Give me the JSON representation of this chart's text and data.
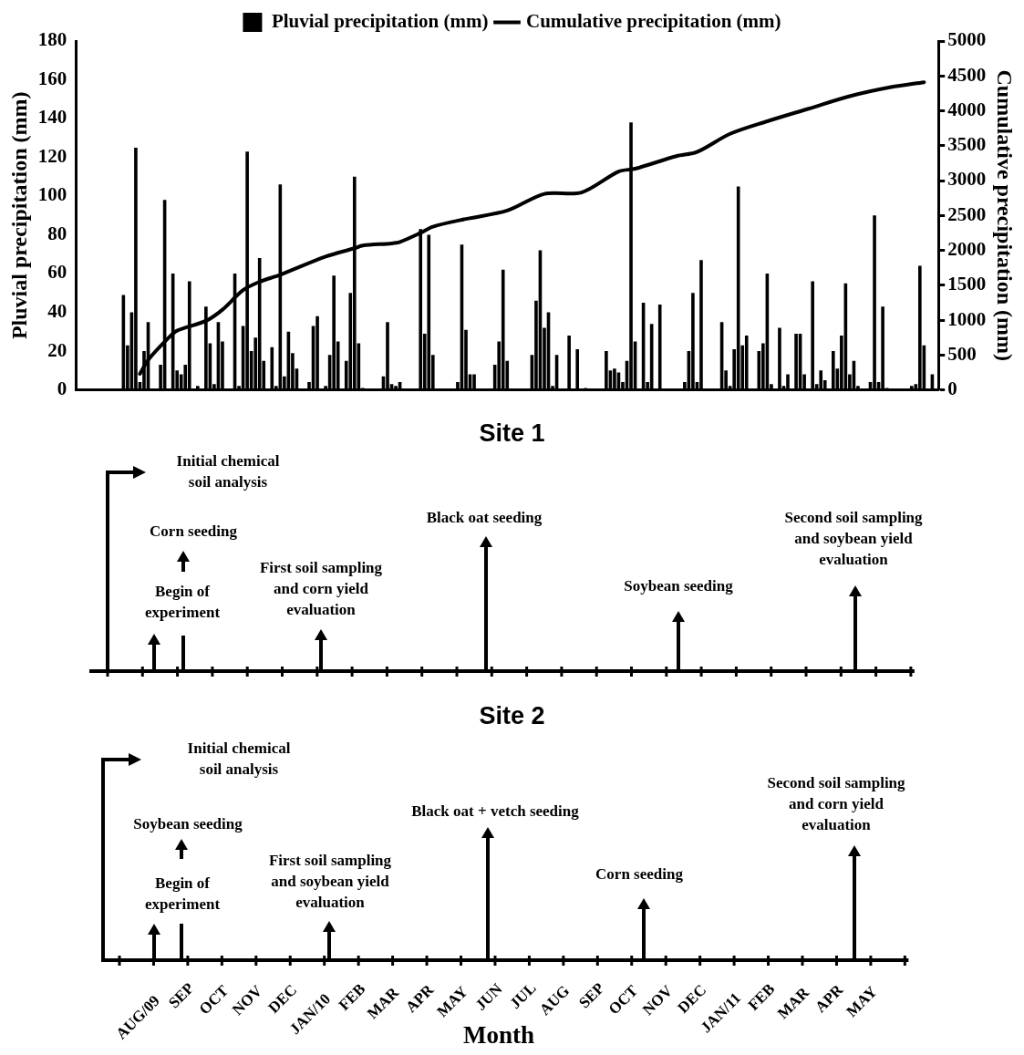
{
  "chart_data": [
    {
      "type": "bar",
      "categories": [
        null,
        null,
        null,
        null,
        null,
        null,
        null,
        null,
        null,
        null,
        null,
        null,
        null,
        null,
        null,
        null,
        null,
        null,
        null,
        null,
        null,
        null,
        null,
        null,
        null,
        null,
        null,
        null,
        null,
        null,
        null,
        null,
        null,
        null,
        null,
        null,
        null,
        null,
        null,
        null,
        null,
        null,
        null,
        null,
        null,
        null,
        null,
        null,
        null,
        null,
        null,
        null,
        null,
        null,
        null,
        null,
        null,
        null,
        null,
        null,
        null,
        null,
        null,
        null,
        null,
        null,
        null,
        null,
        null,
        null,
        null,
        null,
        null,
        null,
        null,
        null,
        null,
        null,
        null,
        null,
        null,
        null,
        null,
        null,
        null,
        null,
        null,
        null,
        null,
        null,
        null,
        null,
        null,
        null,
        null,
        null,
        null,
        null,
        null,
        null,
        null,
        null,
        null,
        null,
        null,
        null,
        null,
        null,
        null,
        null,
        null,
        null,
        null,
        null,
        null,
        null,
        null,
        null,
        null,
        null,
        null,
        null,
        null,
        null,
        null,
        null,
        null,
        null,
        null,
        null,
        null,
        null,
        null,
        null,
        null,
        null,
        null,
        null,
        null,
        null,
        null,
        null,
        null,
        null,
        null,
        null,
        null,
        null,
        null,
        null,
        null,
        null,
        null,
        null,
        null,
        null,
        null,
        null,
        null,
        null,
        null,
        null,
        null,
        null,
        null,
        null,
        null,
        null,
        null,
        null,
        null,
        null,
        null,
        null,
        null,
        null,
        null,
        null,
        null,
        null,
        null,
        null,
        null,
        null,
        null,
        null,
        null,
        null,
        null,
        null,
        null,
        null,
        null,
        null,
        null,
        null,
        null,
        null,
        null,
        null,
        null,
        null,
        null,
        null,
        null,
        null,
        null,
        null,
        null
      ],
      "ylabel": "Pluvial precipitation (mm)",
      "y2label": "Cumulative precipitation (mm)",
      "ylim": [
        0,
        180
      ],
      "yticks": [
        0,
        20,
        40,
        60,
        80,
        100,
        120,
        140,
        160,
        180
      ],
      "y2lim": [
        0,
        5000
      ],
      "y2ticks": [
        0,
        500,
        1000,
        1500,
        2000,
        2500,
        3000,
        3500,
        4000,
        4500,
        5000
      ],
      "legend": "top",
      "series": [
        {
          "name": "Pluvial precipitation (mm)",
          "color": "#000000",
          "values": [
            0,
            0,
            0,
            0,
            0,
            0,
            0,
            0,
            0,
            0,
            0,
            49,
            23,
            40,
            125,
            4,
            20,
            35,
            0,
            0,
            13,
            98,
            0,
            60,
            10,
            8,
            13,
            56,
            0,
            2,
            0,
            43,
            24,
            3,
            35,
            25,
            0,
            0,
            60,
            2,
            33,
            123,
            20,
            27,
            68,
            15,
            0,
            22,
            2,
            106,
            7,
            30,
            19,
            11,
            0,
            0,
            4,
            33,
            38,
            0,
            2,
            18,
            59,
            25,
            0,
            15,
            50,
            110,
            24,
            1,
            0,
            0,
            0,
            0,
            7,
            35,
            3,
            2,
            4,
            0,
            0,
            0,
            0,
            83,
            29,
            80,
            18,
            0,
            0,
            0,
            0,
            0,
            4,
            75,
            31,
            8,
            8,
            0,
            0,
            0,
            0,
            13,
            25,
            62,
            15,
            0,
            0,
            0,
            0,
            0,
            18,
            46,
            72,
            32,
            40,
            2,
            18,
            0,
            0,
            28,
            0,
            21,
            0,
            1,
            0,
            0,
            0,
            0,
            20,
            10,
            11,
            9,
            4,
            15,
            138,
            25,
            0,
            45,
            4,
            34,
            0,
            44,
            0,
            0,
            0,
            0,
            0,
            4,
            20,
            50,
            4,
            67,
            0,
            0,
            0,
            0,
            35,
            10,
            2,
            21,
            105,
            23,
            28,
            0,
            0,
            20,
            24,
            60,
            3,
            0,
            32,
            2,
            8,
            0,
            29,
            29,
            8,
            0,
            56,
            3,
            10,
            5,
            0,
            20,
            11,
            28,
            55,
            8,
            15,
            2,
            0,
            0,
            4,
            90,
            4,
            43,
            1,
            0,
            0,
            0,
            0,
            0,
            2,
            3,
            64,
            23,
            0,
            8,
            0
          ]
        },
        {
          "name": "Cumulative precipitation (mm)",
          "type": "line",
          "axis": "y2",
          "color": "#000000",
          "values": [
            null,
            null,
            null,
            null,
            null,
            null,
            null,
            null,
            null,
            null,
            null,
            null,
            null,
            null,
            null,
            230,
            null,
            430,
            null,
            null,
            null,
            null,
            750,
            null,
            850,
            null,
            null,
            null,
            null,
            null,
            null,
            990,
            null,
            null,
            null,
            1150,
            null,
            null,
            null,
            null,
            1430,
            null,
            null,
            null,
            1550,
            null,
            null,
            null,
            null,
            1650,
            null,
            null,
            null,
            null,
            null,
            null,
            null,
            null,
            null,
            null,
            1910,
            null,
            null,
            null,
            null,
            null,
            null,
            2030,
            null,
            2070,
            null,
            null,
            null,
            null,
            null,
            null,
            2100,
            null,
            2120,
            null,
            null,
            null,
            null,
            2250,
            null,
            null,
            2340,
            null,
            null,
            null,
            null,
            null,
            null,
            null,
            2450,
            null,
            null,
            null,
            null,
            null,
            null,
            null,
            null,
            null,
            2570,
            null,
            null,
            null,
            null,
            null,
            null,
            null,
            null,
            2810,
            null,
            null,
            null,
            null,
            null,
            null,
            null,
            null,
            2830,
            null,
            null,
            null,
            null,
            null,
            null,
            null,
            null,
            3130,
            null,
            null,
            null,
            3170,
            null,
            null,
            null,
            null,
            null,
            null,
            null,
            null,
            null,
            3350,
            null,
            null,
            null,
            null,
            3410,
            null,
            null,
            null,
            null,
            null,
            null,
            null,
            3670,
            null,
            null,
            null,
            null,
            null,
            null,
            null,
            null,
            3850,
            null,
            null,
            null,
            null,
            null,
            null,
            null,
            null,
            null,
            4030,
            null,
            null,
            null,
            null,
            null,
            null,
            null,
            null,
            null,
            4210,
            null,
            null,
            null,
            null,
            null,
            null,
            null,
            null,
            null,
            4340,
            null,
            null,
            null,
            null,
            null,
            null,
            null,
            4410,
            null,
            null,
            null
          ]
        }
      ]
    },
    {
      "type": "other",
      "title": "Site 1",
      "annotations": [
        "Initial chemical soil analysis",
        "Begin of experiment",
        "Corn seeding",
        "First soil sampling and corn yield evaluation",
        "Black oat seeding",
        "Soybean seeding",
        "Second soil sampling and soybean yield evaluation"
      ]
    },
    {
      "type": "other",
      "title": "Site 2",
      "xlabel": "Month",
      "categories": [
        "AUG/09",
        "SEP",
        "OCT",
        "NOV",
        "DEC",
        "JAN/10",
        "FEB",
        "MAR",
        "APR",
        "MAY",
        "JUN",
        "JUL",
        "AUG",
        "SEP",
        "OCT",
        "NOV",
        "DEC",
        "JAN/11",
        "FEB",
        "MAR",
        "APR",
        "MAY"
      ],
      "annotations": [
        "Initial chemical soil analysis",
        "Begin of experiment",
        "Soybean seeding",
        "First soil sampling and soybean yield evaluation",
        "Black oat + vetch seeding",
        "Corn seeding",
        "Second soil sampling and corn yield evaluation"
      ]
    }
  ]
}
